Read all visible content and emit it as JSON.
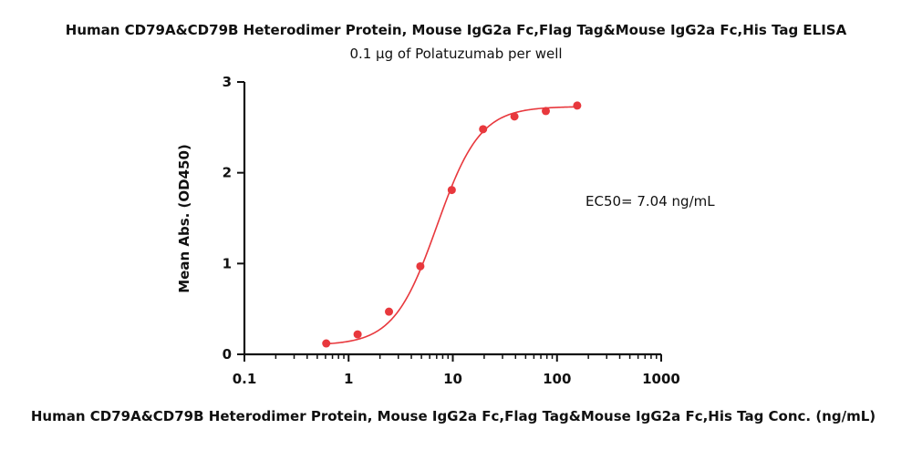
{
  "chart_data": {
    "type": "scatter",
    "title": "Human CD79A&CD79B Heterodimer Protein, Mouse IgG2a Fc,Flag Tag&Mouse IgG2a Fc,His Tag ELISA",
    "subtitle": "0.1 µg of Polatuzumab per well",
    "xlabel": "Human CD79A&CD79B Heterodimer Protein, Mouse IgG2a Fc,Flag Tag&Mouse IgG2a Fc,His Tag Conc. (ng/mL)",
    "ylabel": "Mean Abs. (OD450)",
    "xscale": "log",
    "xlim": [
      0.1,
      1000
    ],
    "ylim": [
      0,
      3
    ],
    "xticks": [
      0.1,
      1,
      10,
      100,
      1000
    ],
    "xtick_labels": [
      "0.1",
      "1",
      "10",
      "100",
      "1000"
    ],
    "yticks": [
      0,
      1,
      2,
      3
    ],
    "ytick_labels": [
      "0",
      "1",
      "2",
      "3"
    ],
    "grid": false,
    "color": "#e8383d",
    "series": [
      {
        "x": [
          0.61,
          1.22,
          2.44,
          4.88,
          9.77,
          19.53,
          39.06,
          78.13,
          156.25
        ],
        "y": [
          0.12,
          0.22,
          0.47,
          0.97,
          1.81,
          2.48,
          2.62,
          2.68,
          2.74
        ]
      }
    ],
    "fit": {
      "model": "4PL",
      "bottom": 0.1,
      "top": 2.73,
      "ec50": 7.04,
      "hill": 2.1
    },
    "annotation": "EC50= 7.04 ng/mL"
  }
}
